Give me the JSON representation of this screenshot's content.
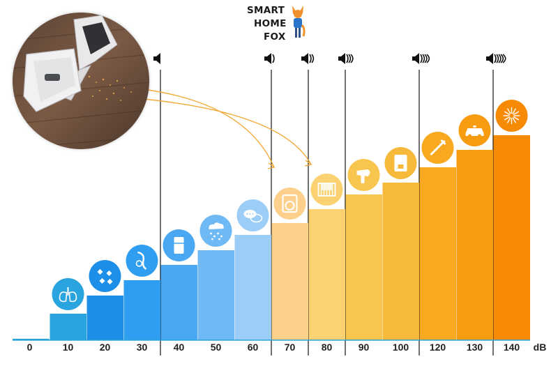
{
  "logo": {
    "line1": "SMART",
    "line2": "HOME",
    "line3": "FOX"
  },
  "chart_data": {
    "type": "bar",
    "categories": [
      "0",
      "10",
      "20",
      "30",
      "40",
      "50",
      "60",
      "70",
      "80",
      "90",
      "100",
      "120",
      "130",
      "140"
    ],
    "values": [
      0,
      10,
      20,
      30,
      40,
      50,
      60,
      70,
      80,
      90,
      100,
      120,
      130,
      140
    ],
    "unit_label": "dB",
    "ylim": [
      0,
      150
    ],
    "grid": false,
    "legend": "none",
    "bar_colors": [
      "#2aa4de",
      "#2aa4de",
      "#1e8fe8",
      "#2f9df0",
      "#4aa8f2",
      "#6fb9f4",
      "#9ccdf6",
      "#fdd08b",
      "#fbd272",
      "#f8c64e",
      "#f7b93a",
      "#f8a91f",
      "#f79b10",
      "#f68a05"
    ],
    "icons": [
      "none",
      "lungs-icon",
      "leaves-icon",
      "whisper-icon",
      "fridge-icon",
      "rain-icon",
      "chat-icon",
      "washing-machine-icon",
      "piano-icon",
      "hair-dryer-icon",
      "coffee-machine-icon",
      "trombone-icon",
      "police-car-icon",
      "fireworks-icon"
    ],
    "volume_markers": [
      {
        "value": 30,
        "waves": 0
      },
      {
        "value": 60,
        "waves": 1
      },
      {
        "value": 70,
        "waves": 2
      },
      {
        "value": 80,
        "waves": 3
      },
      {
        "value": 100,
        "waves": 4
      },
      {
        "value": 130,
        "waves": 5
      }
    ],
    "annotation_arrows_to": [
      "70",
      "80"
    ]
  }
}
